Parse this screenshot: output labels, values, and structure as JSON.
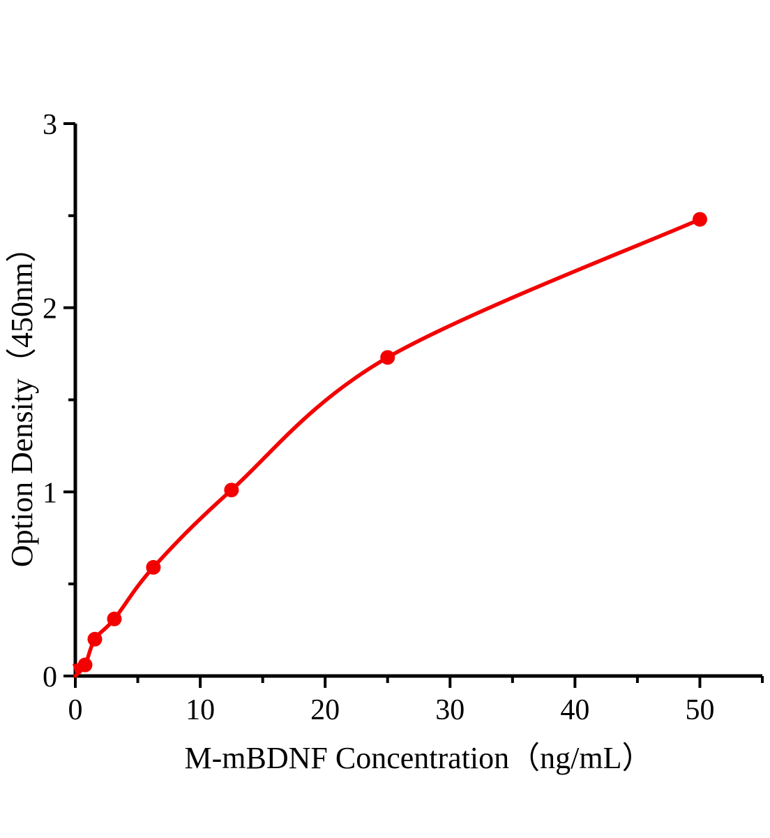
{
  "chart_data": {
    "type": "scatter",
    "title": "",
    "xlabel": "M-mBDNF Concentration（ng/mL）",
    "ylabel": "Option Density（450nm）",
    "x": [
      0.781,
      1.563,
      3.125,
      6.25,
      12.5,
      25,
      50
    ],
    "y": [
      0.06,
      0.2,
      0.31,
      0.59,
      1.01,
      1.73,
      2.48
    ],
    "curve_start": {
      "x": 0,
      "y": 0
    },
    "xlim": [
      0,
      55
    ],
    "ylim": [
      0,
      3
    ],
    "x_major_ticks": [
      0,
      10,
      20,
      30,
      40,
      50
    ],
    "x_minor_ticks": [
      5,
      15,
      25,
      35,
      45,
      55
    ],
    "y_major_ticks": [
      0,
      1,
      2,
      3
    ],
    "y_minor_ticks": [
      0.5,
      1.5,
      2.5
    ],
    "grid": "off",
    "legend": "none",
    "line_color": "#f30000",
    "marker_color": "#f30000",
    "axis_color": "#000000"
  }
}
